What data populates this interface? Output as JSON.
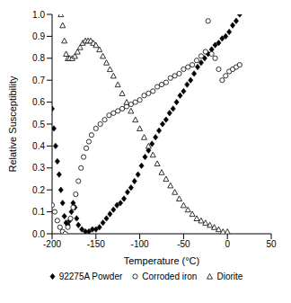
{
  "chart_data": {
    "type": "scatter",
    "x_label": "Temperature (°C)",
    "y_label": "Relative Susceptibility",
    "xlim": [
      -200,
      50
    ],
    "xticks": [
      -200,
      -150,
      -100,
      -50,
      0,
      50
    ],
    "ylim": [
      0,
      1
    ],
    "yticks": [
      {
        "value": 0,
        "label": "0.0"
      },
      0.1,
      0.2,
      0.3,
      0.4,
      0.5,
      0.6,
      0.7,
      0.8,
      0.9,
      {
        "value": 1,
        "label": "1.0"
      }
    ],
    "grid": false,
    "legend": "bottom",
    "series": [
      {
        "name": "92275A Powder",
        "color": "#000000",
        "marker": "diamond",
        "x": [
          -200,
          -198,
          -196,
          -194,
          -192,
          -190,
          -188,
          -186,
          -184,
          -182,
          -180,
          -178,
          -176,
          -174,
          -172,
          -170,
          -166,
          -162,
          -158,
          -154,
          -150,
          -146,
          -142,
          -138,
          -134,
          -130,
          -126,
          -122,
          -118,
          -114,
          -110,
          -106,
          -102,
          -98,
          -94,
          -90,
          -86,
          -82,
          -78,
          -74,
          -70,
          -66,
          -62,
          -58,
          -54,
          -50,
          -46,
          -42,
          -38,
          -34,
          -30,
          -26,
          -22,
          -18,
          -14,
          -10,
          -6,
          -2,
          2,
          6,
          10,
          14
        ],
        "values": [
          0.57,
          0.48,
          0.4,
          0.33,
          0.27,
          0.2,
          0.14,
          0.08,
          0.05,
          0.04,
          0.06,
          0.1,
          0.14,
          0.12,
          0.07,
          0.04,
          0.02,
          0.01,
          0.01,
          0.02,
          0.02,
          0.03,
          0.05,
          0.07,
          0.09,
          0.11,
          0.13,
          0.14,
          0.16,
          0.19,
          0.21,
          0.24,
          0.27,
          0.31,
          0.35,
          0.38,
          0.41,
          0.44,
          0.47,
          0.5,
          0.52,
          0.55,
          0.57,
          0.6,
          0.63,
          0.65,
          0.68,
          0.7,
          0.73,
          0.76,
          0.78,
          0.8,
          0.82,
          0.84,
          0.86,
          0.87,
          0.89,
          0.9,
          0.92,
          0.95,
          0.97,
          1.0
        ]
      },
      {
        "name": "Corroded iron",
        "color": "#000000",
        "marker": "circle",
        "x": [
          -200,
          -197,
          -194,
          -191,
          -188,
          -185,
          -182,
          -179,
          -176,
          -173,
          -170,
          -167,
          -164,
          -161,
          -158,
          -155,
          -150,
          -145,
          -140,
          -135,
          -130,
          -125,
          -120,
          -115,
          -110,
          -105,
          -100,
          -95,
          -90,
          -85,
          -80,
          -75,
          -70,
          -65,
          -60,
          -55,
          -50,
          -45,
          -40,
          -35,
          -30,
          -25,
          -22,
          -18,
          -14,
          -10,
          -6,
          -2,
          2,
          6,
          10,
          14
        ],
        "values": [
          0.13,
          0.1,
          0.06,
          0.03,
          0.01,
          0.0,
          0.03,
          0.07,
          0.12,
          0.18,
          0.24,
          0.3,
          0.35,
          0.39,
          0.42,
          0.45,
          0.48,
          0.5,
          0.52,
          0.54,
          0.55,
          0.56,
          0.57,
          0.58,
          0.59,
          0.6,
          0.61,
          0.63,
          0.64,
          0.65,
          0.67,
          0.68,
          0.69,
          0.71,
          0.72,
          0.73,
          0.75,
          0.76,
          0.77,
          0.79,
          0.81,
          0.83,
          0.97,
          0.82,
          0.8,
          0.75,
          0.7,
          0.72,
          0.74,
          0.75,
          0.76,
          0.77
        ]
      },
      {
        "name": "Diorite",
        "color": "#000000",
        "marker": "triangle",
        "x": [
          -190,
          -188,
          -186,
          -184,
          -182,
          -180,
          -177,
          -174,
          -171,
          -168,
          -165,
          -162,
          -159,
          -156,
          -153,
          -150,
          -146,
          -142,
          -138,
          -134,
          -130,
          -125,
          -120,
          -115,
          -110,
          -105,
          -100,
          -95,
          -90,
          -85,
          -80,
          -75,
          -70,
          -65,
          -60,
          -55,
          -50,
          -45,
          -40,
          -35,
          -30,
          -25,
          -20,
          -15,
          -10,
          -5,
          0
        ],
        "values": [
          1.0,
          0.95,
          0.88,
          0.82,
          0.8,
          0.8,
          0.8,
          0.81,
          0.83,
          0.85,
          0.87,
          0.88,
          0.88,
          0.88,
          0.87,
          0.86,
          0.84,
          0.81,
          0.78,
          0.75,
          0.72,
          0.68,
          0.64,
          0.6,
          0.56,
          0.52,
          0.48,
          0.44,
          0.4,
          0.36,
          0.32,
          0.28,
          0.25,
          0.22,
          0.19,
          0.16,
          0.13,
          0.11,
          0.09,
          0.07,
          0.06,
          0.05,
          0.04,
          0.03,
          0.02,
          0.01,
          0.01
        ]
      }
    ]
  }
}
